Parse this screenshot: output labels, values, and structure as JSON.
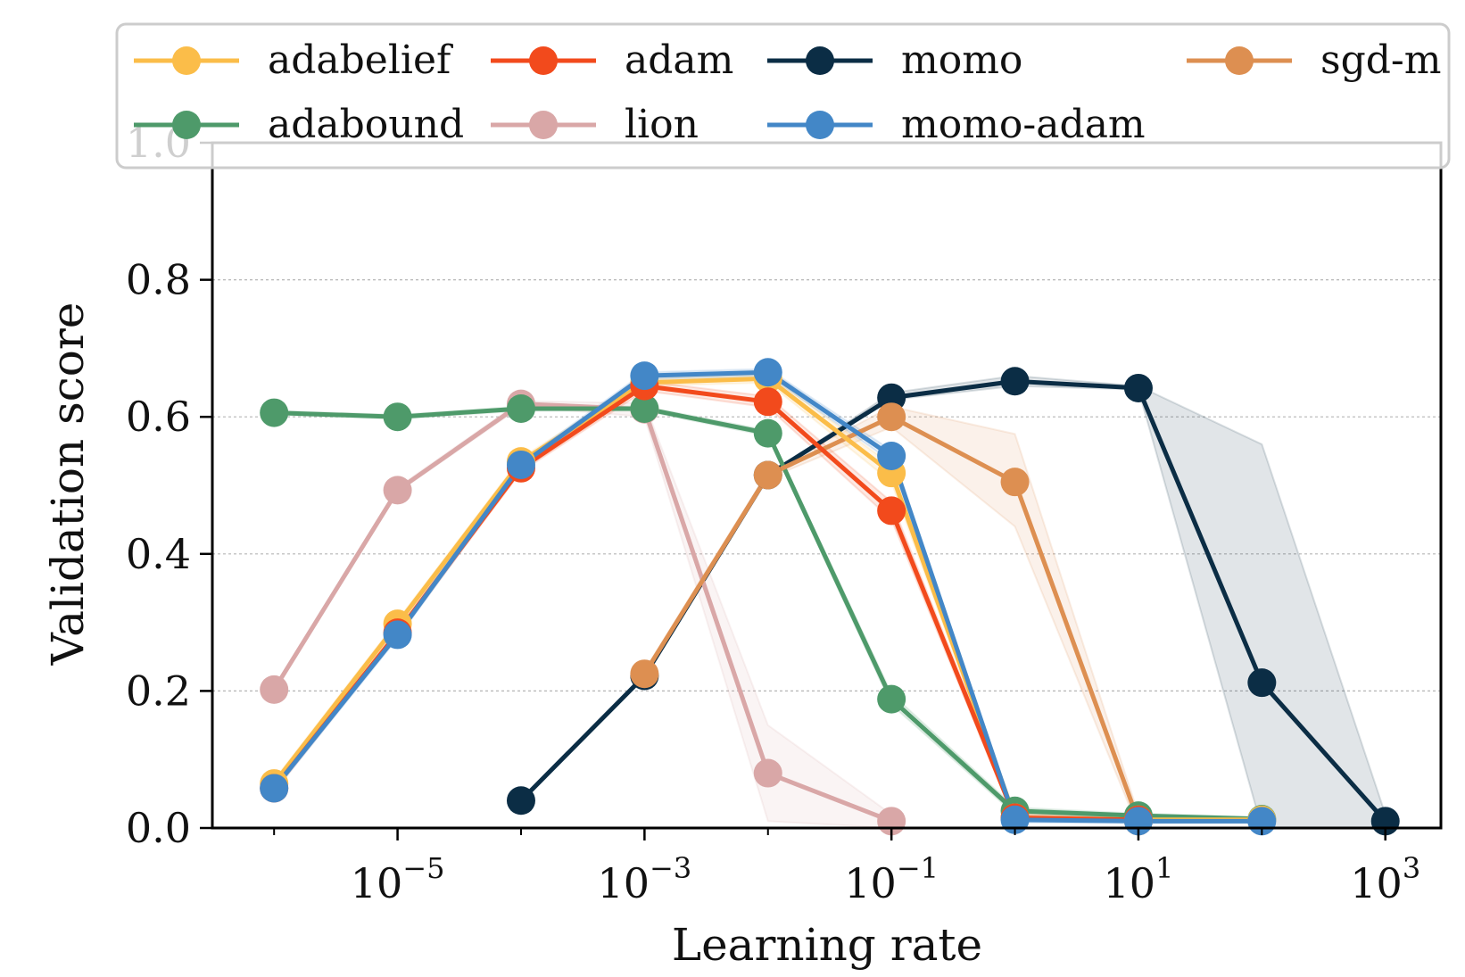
{
  "chart_data": {
    "type": "line",
    "title": "",
    "xlabel": "Learning rate",
    "ylabel": "Validation score",
    "xscale": "log",
    "xlim_exp": [
      -6.5,
      3.45
    ],
    "ylim": [
      0,
      1.0
    ],
    "x_ticks": [
      {
        "exp": -5,
        "base": "10",
        "sup": "−5"
      },
      {
        "exp": -3,
        "base": "10",
        "sup": "−3"
      },
      {
        "exp": -1,
        "base": "10",
        "sup": "−1"
      },
      {
        "exp": 1,
        "base": "10",
        "sup": "1"
      },
      {
        "exp": 3,
        "base": "10",
        "sup": "3"
      }
    ],
    "y_ticks": [
      {
        "value": 0.0,
        "label": "0.0"
      },
      {
        "value": 0.2,
        "label": "0.2"
      },
      {
        "value": 0.4,
        "label": "0.4"
      },
      {
        "value": 0.6,
        "label": "0.6"
      },
      {
        "value": 0.8,
        "label": "0.8"
      },
      {
        "value": 1.0,
        "label": "1.0"
      }
    ],
    "grid": "horizontal-dotted",
    "legend_position": "top",
    "series": [
      {
        "name": "momo",
        "color": "#0b2d45",
        "x_exp": [
          -4,
          -3,
          -2,
          -1,
          0,
          1,
          2,
          3
        ],
        "values": [
          0.04,
          0.222,
          0.515,
          0.628,
          0.652,
          0.642,
          0.212,
          0.01
        ],
        "band_lower": [
          0.04,
          0.222,
          0.515,
          0.625,
          0.645,
          0.64,
          0.0,
          0.0
        ],
        "band_upper": [
          0.04,
          0.222,
          0.515,
          0.635,
          0.66,
          0.645,
          0.56,
          0.02
        ]
      },
      {
        "name": "lion",
        "color": "#d9a7a7",
        "x_exp": [
          -6,
          -5,
          -4,
          -3,
          -2,
          -1
        ],
        "values": [
          0.202,
          0.493,
          0.619,
          0.611,
          0.08,
          0.01
        ],
        "band_lower": [
          0.2,
          0.49,
          0.615,
          0.6,
          0.01,
          0.0
        ],
        "band_upper": [
          0.205,
          0.497,
          0.623,
          0.62,
          0.15,
          0.02
        ]
      },
      {
        "name": "adabound",
        "color": "#4e9a6a",
        "x_exp": [
          -6,
          -5,
          -4,
          -3,
          -2,
          -1,
          0,
          1,
          2
        ],
        "values": [
          0.606,
          0.6,
          0.612,
          0.612,
          0.576,
          0.188,
          0.025,
          0.018,
          0.013
        ],
        "band_lower": [
          0.603,
          0.597,
          0.609,
          0.609,
          0.572,
          0.18,
          0.02,
          0.015,
          0.01
        ],
        "band_upper": [
          0.609,
          0.603,
          0.615,
          0.615,
          0.58,
          0.196,
          0.03,
          0.021,
          0.016
        ]
      },
      {
        "name": "sgd-m",
        "color": "#dd8f51",
        "x_exp": [
          -3,
          -2,
          -1,
          0,
          1
        ],
        "values": [
          0.225,
          0.515,
          0.6,
          0.505,
          0.01
        ],
        "band_lower": [
          0.22,
          0.51,
          0.585,
          0.44,
          0.0
        ],
        "band_upper": [
          0.23,
          0.52,
          0.615,
          0.575,
          0.02
        ]
      },
      {
        "name": "adabelief",
        "color": "#fbbd49",
        "x_exp": [
          -6,
          -5,
          -4,
          -3,
          -2,
          -1,
          0,
          1,
          2
        ],
        "values": [
          0.065,
          0.298,
          0.535,
          0.65,
          0.656,
          0.518,
          0.015,
          0.012,
          0.012
        ],
        "band_lower": [
          0.06,
          0.293,
          0.53,
          0.645,
          0.65,
          0.505,
          0.01,
          0.01,
          0.01
        ],
        "band_upper": [
          0.07,
          0.303,
          0.54,
          0.655,
          0.662,
          0.53,
          0.02,
          0.015,
          0.015
        ]
      },
      {
        "name": "adam",
        "color": "#f24a1c",
        "x_exp": [
          -6,
          -5,
          -4,
          -3,
          -2,
          -1,
          0,
          1
        ],
        "values": [
          0.058,
          0.285,
          0.525,
          0.645,
          0.622,
          0.463,
          0.015,
          0.012
        ],
        "band_lower": [
          0.053,
          0.28,
          0.52,
          0.638,
          0.614,
          0.45,
          0.01,
          0.01
        ],
        "band_upper": [
          0.063,
          0.29,
          0.53,
          0.652,
          0.63,
          0.476,
          0.02,
          0.015
        ]
      },
      {
        "name": "momo-adam",
        "color": "#4387c7",
        "x_exp": [
          -6,
          -5,
          -4,
          -3,
          -2,
          -1,
          0,
          1,
          2
        ],
        "values": [
          0.058,
          0.282,
          0.53,
          0.66,
          0.665,
          0.543,
          0.012,
          0.01,
          0.01
        ],
        "band_lower": [
          0.053,
          0.277,
          0.525,
          0.655,
          0.66,
          0.535,
          0.008,
          0.007,
          0.007
        ],
        "band_upper": [
          0.063,
          0.287,
          0.535,
          0.665,
          0.67,
          0.551,
          0.016,
          0.013,
          0.013
        ]
      }
    ],
    "legend": [
      {
        "name": "adabelief",
        "color": "#fbbd49"
      },
      {
        "name": "adabound",
        "color": "#4e9a6a"
      },
      {
        "name": "adam",
        "color": "#f24a1c"
      },
      {
        "name": "lion",
        "color": "#d9a7a7"
      },
      {
        "name": "momo",
        "color": "#0b2d45"
      },
      {
        "name": "momo-adam",
        "color": "#4387c7"
      },
      {
        "name": "sgd-m",
        "color": "#dd8f51"
      }
    ]
  }
}
